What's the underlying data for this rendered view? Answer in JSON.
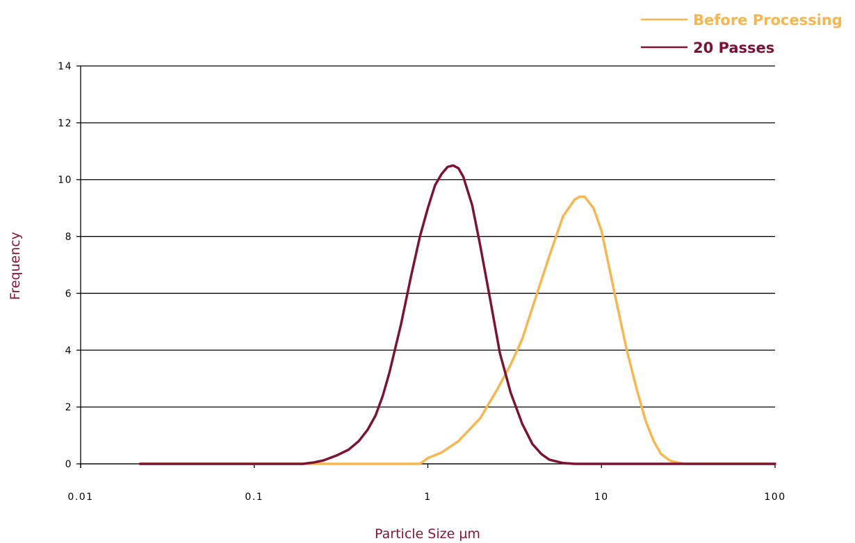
{
  "chart_data": {
    "type": "line",
    "title": "",
    "xlabel": "Particle Size µm",
    "ylabel": "Frequency",
    "xscale": "log",
    "xlim": [
      0.01,
      100
    ],
    "ylim": [
      0,
      14
    ],
    "x_ticks": [
      "0.01",
      "0.1",
      "1",
      "10",
      "100"
    ],
    "y_ticks": [
      "0",
      "2",
      "4",
      "6",
      "8",
      "10",
      "12",
      "14"
    ],
    "grid": "horizontal",
    "legend_position": "top-right",
    "axis_title_color": "#8a1538",
    "series": [
      {
        "name": "Before Processing",
        "color": "#f8b64c",
        "x": [
          0.022,
          0.2,
          0.5,
          0.9,
          1.0,
          1.2,
          1.5,
          2.0,
          2.5,
          3.0,
          3.5,
          4.0,
          5.0,
          6.0,
          7.0,
          7.5,
          8.0,
          9.0,
          10.0,
          11.0,
          12.0,
          14.0,
          16.0,
          18.0,
          20.0,
          22.0,
          25.0,
          30.0,
          40.0,
          100.0
        ],
        "y": [
          0,
          0,
          0,
          0,
          0.2,
          0.4,
          0.8,
          1.6,
          2.6,
          3.5,
          4.4,
          5.5,
          7.3,
          8.7,
          9.3,
          9.4,
          9.4,
          9.0,
          8.2,
          7.0,
          5.9,
          4.0,
          2.6,
          1.5,
          0.8,
          0.35,
          0.1,
          0,
          0,
          0
        ]
      },
      {
        "name": "20 Passes",
        "color": "#7d1235",
        "x": [
          0.022,
          0.19,
          0.22,
          0.25,
          0.3,
          0.35,
          0.4,
          0.45,
          0.5,
          0.55,
          0.6,
          0.7,
          0.8,
          0.9,
          1.0,
          1.1,
          1.2,
          1.3,
          1.4,
          1.5,
          1.6,
          1.8,
          2.0,
          2.3,
          2.6,
          3.0,
          3.5,
          4.0,
          4.5,
          5.0,
          6.0,
          7.0,
          10.0,
          30.0,
          100.0
        ],
        "y": [
          0,
          0,
          0.05,
          0.12,
          0.3,
          0.5,
          0.8,
          1.2,
          1.7,
          2.4,
          3.2,
          4.9,
          6.6,
          8.0,
          9.0,
          9.8,
          10.2,
          10.45,
          10.5,
          10.4,
          10.1,
          9.1,
          7.7,
          5.7,
          3.9,
          2.5,
          1.4,
          0.7,
          0.35,
          0.15,
          0.03,
          0,
          0,
          0,
          0
        ]
      }
    ]
  }
}
